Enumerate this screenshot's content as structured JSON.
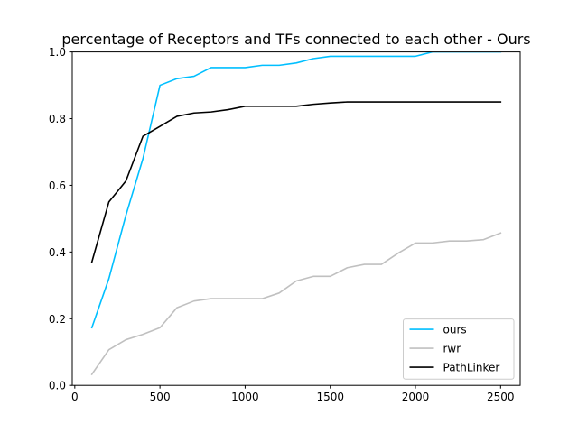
{
  "chart_data": {
    "type": "line",
    "title": "percentage of Receptors and TFs connected to each other - Ours",
    "xlabel": "",
    "ylabel": "",
    "xlim": [
      -15,
      2615
    ],
    "ylim": [
      0,
      1.0
    ],
    "xticks": [
      "0",
      "500",
      "1000",
      "1500",
      "2000",
      "2500"
    ],
    "yticks": [
      "0.0",
      "0.2",
      "0.4",
      "0.6",
      "0.8",
      "1.0"
    ],
    "grid": false,
    "legend_position": "lower-right",
    "x": [
      100,
      200,
      300,
      400,
      500,
      600,
      700,
      800,
      900,
      1000,
      1100,
      1200,
      1300,
      1400,
      1500,
      1600,
      1700,
      1800,
      1900,
      2000,
      2100,
      2200,
      2300,
      2400,
      2500
    ],
    "series": [
      {
        "name": "ours",
        "color": "#00bfff",
        "values": [
          0.173,
          0.32,
          0.51,
          0.68,
          0.9,
          0.92,
          0.927,
          0.953,
          0.953,
          0.953,
          0.96,
          0.96,
          0.967,
          0.98,
          0.987,
          0.987,
          0.987,
          0.987,
          0.987,
          0.987,
          1.0,
          1.0,
          1.0,
          1.0,
          1.0
        ]
      },
      {
        "name": "rwr",
        "color": "#c0c0c0",
        "values": [
          0.033,
          0.107,
          0.137,
          0.153,
          0.173,
          0.233,
          0.253,
          0.26,
          0.26,
          0.26,
          0.26,
          0.277,
          0.313,
          0.327,
          0.327,
          0.353,
          0.363,
          0.363,
          0.397,
          0.427,
          0.427,
          0.433,
          0.433,
          0.437,
          0.457
        ]
      },
      {
        "name": "PathLinker",
        "color": "#000000",
        "values": [
          0.37,
          0.55,
          0.613,
          0.747,
          0.777,
          0.807,
          0.817,
          0.82,
          0.827,
          0.837,
          0.837,
          0.837,
          0.837,
          0.843,
          0.847,
          0.85,
          0.85,
          0.85,
          0.85,
          0.85,
          0.85,
          0.85,
          0.85,
          0.85,
          0.85
        ]
      }
    ]
  }
}
